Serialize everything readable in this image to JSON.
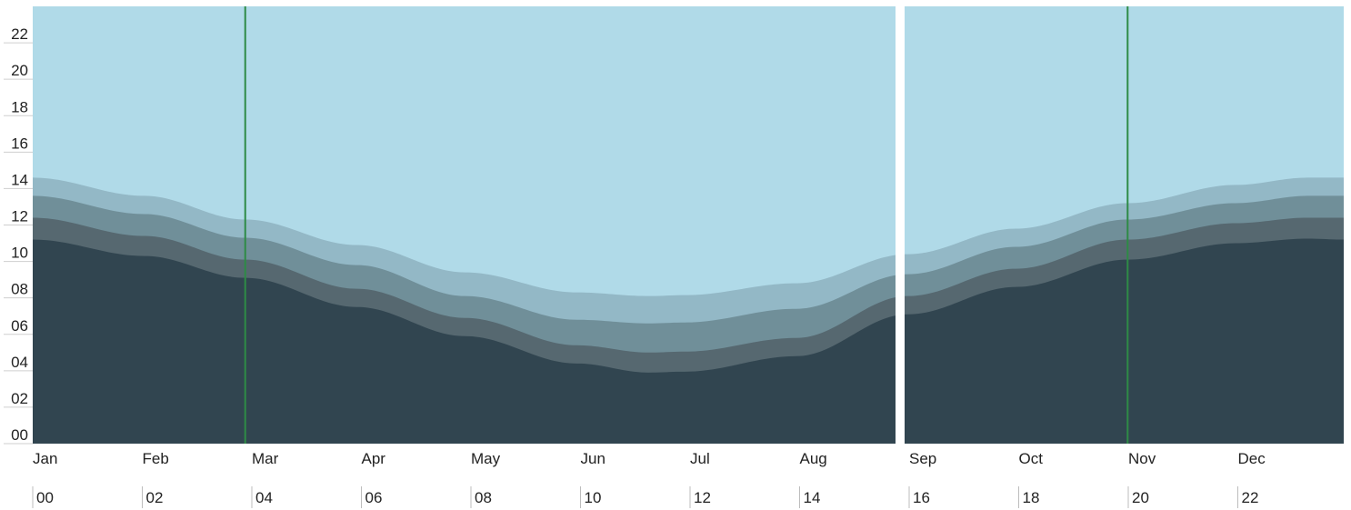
{
  "chart_data": {
    "type": "area",
    "title": "",
    "xlabel": "",
    "ylabel": "",
    "ylim": [
      0,
      24
    ],
    "y_tick_labels": [
      "00",
      "02",
      "04",
      "06",
      "08",
      "10",
      "12",
      "14",
      "16",
      "18",
      "20",
      "22"
    ],
    "month_labels": [
      "Jan",
      "Feb",
      "Mar",
      "Apr",
      "May",
      "Jun",
      "Jul",
      "Aug",
      "Sep",
      "Oct",
      "Nov",
      "Dec"
    ],
    "hour_labels": [
      "00",
      "02",
      "04",
      "06",
      "08",
      "10",
      "12",
      "14",
      "16",
      "18",
      "20",
      "22"
    ],
    "x_unit": "day of year",
    "x_range": [
      1,
      365
    ],
    "x": [
      1,
      32,
      60,
      91,
      121,
      152,
      172,
      182,
      213,
      244,
      274,
      305,
      335,
      355,
      365
    ],
    "series": [
      {
        "values": [
          11.2,
          10.3,
          9.1,
          7.5,
          5.9,
          4.4,
          3.9,
          3.95,
          4.8,
          7.1,
          8.6,
          10.1,
          11.0,
          11.25,
          11.2
        ]
      },
      {
        "values": [
          12.4,
          11.4,
          10.1,
          8.5,
          6.9,
          5.4,
          5.0,
          5.05,
          5.8,
          8.1,
          9.6,
          11.2,
          12.1,
          12.4,
          12.4
        ]
      },
      {
        "values": [
          13.6,
          12.6,
          11.3,
          9.8,
          8.1,
          6.8,
          6.6,
          6.65,
          7.4,
          9.3,
          10.8,
          12.3,
          13.2,
          13.6,
          13.6
        ]
      },
      {
        "values": [
          14.6,
          13.6,
          12.3,
          10.9,
          9.4,
          8.3,
          8.1,
          8.15,
          8.8,
          10.4,
          11.8,
          13.2,
          14.2,
          14.6,
          14.6
        ]
      }
    ],
    "markers": [
      {
        "x": 60
      },
      {
        "x": 305
      }
    ],
    "colors": {
      "sky": "#b0dae8",
      "bands": [
        "#314550",
        "#566870",
        "#708f99",
        "#93b8c6"
      ],
      "marker": "#2e8b46",
      "divider": "#ffffff"
    },
    "grid": false,
    "legend": "none"
  }
}
